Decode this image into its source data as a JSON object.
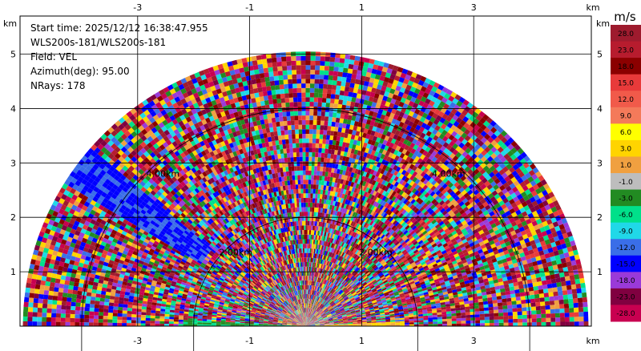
{
  "info": {
    "start_time": "Start time: 2025/12/12 16:38:47.955",
    "instrument": "WLS200s-181/WLS200s-181",
    "field": "Field: VEL",
    "azimuth": "Azimuth(deg): 95.00",
    "nrays": "NRays: 178"
  },
  "chart_data": {
    "type": "heatmap",
    "projection": "polar-rhi",
    "x_axis": {
      "unit": "km",
      "ticks": [
        -3,
        -1,
        1,
        3
      ],
      "range": [
        -5.1,
        5.1
      ]
    },
    "y_axis": {
      "unit": "km",
      "ticks": [
        1,
        2,
        3,
        4,
        5
      ],
      "range": [
        0,
        5.7
      ]
    },
    "max_range_km": 5.05,
    "grid": true,
    "range_rings_km": [
      2,
      4
    ],
    "ring_labels": [
      "2.00km",
      "2.00km",
      "4.00km",
      "4.00km"
    ],
    "colorbar": {
      "unit": "m/s",
      "position": "right",
      "levels": [
        {
          "label": "28.0",
          "color": "#9e1b2e"
        },
        {
          "label": "23.0",
          "color": "#b71c2e"
        },
        {
          "label": "18.0",
          "color": "#8b0000"
        },
        {
          "label": "15.0",
          "color": "#e83a3a"
        },
        {
          "label": "12.0",
          "color": "#f15a4a"
        },
        {
          "label": "9.0",
          "color": "#f47a5a"
        },
        {
          "label": "6.0",
          "color": "#ffff00"
        },
        {
          "label": "3.0",
          "color": "#ffd400"
        },
        {
          "label": "1.0",
          "color": "#f0a040"
        },
        {
          "label": "-1.0",
          "color": "#bdbdbd"
        },
        {
          "label": "-3.0",
          "color": "#228b22"
        },
        {
          "label": "-6.0",
          "color": "#00e08a"
        },
        {
          "label": "-9.0",
          "color": "#20d8e8"
        },
        {
          "label": "-12.0",
          "color": "#3a6ee8"
        },
        {
          "label": "-15.0",
          "color": "#0000ff"
        },
        {
          "label": "-18.0",
          "color": "#9a3ad8"
        },
        {
          "label": "-23.0",
          "color": "#800040"
        },
        {
          "label": "-28.0",
          "color": "#c80050"
        }
      ]
    }
  }
}
